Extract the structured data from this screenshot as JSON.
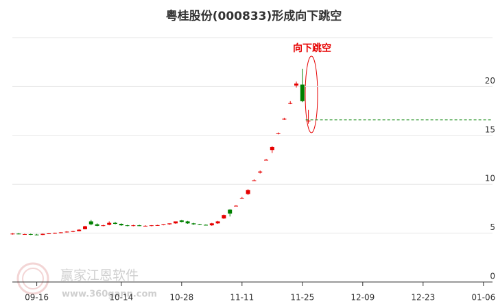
{
  "chart_data": {
    "type": "candlestick",
    "title": "粤桂股份(000833)形成向下跳空",
    "annotation": "向下跳空",
    "watermark": {
      "name": "赢家江恩软件",
      "url": "www.360gann.com"
    },
    "categories": [
      null,
      null,
      null,
      null,
      "09-16",
      null,
      null,
      null,
      null,
      null,
      null,
      null,
      null,
      null,
      null,
      null,
      null,
      null,
      "10-14",
      null,
      null,
      null,
      null,
      null,
      null,
      null,
      null,
      null,
      "10-28",
      null,
      null,
      null,
      null,
      null,
      null,
      null,
      null,
      null,
      "11-11",
      null,
      null,
      null,
      null,
      null,
      null,
      null,
      null,
      null,
      "11-25",
      null,
      null,
      null,
      null,
      null,
      null,
      null,
      null,
      null,
      "12-09",
      null,
      null,
      null,
      null,
      null,
      null,
      null,
      null,
      null,
      "12-23",
      null,
      null,
      null,
      null,
      null,
      null,
      null,
      null,
      null,
      "01-06",
      null
    ],
    "open": [
      4.9,
      4.95,
      4.9,
      4.9,
      4.85,
      4.82,
      4.93,
      4.97,
      5.0,
      5.08,
      5.15,
      5.2,
      5.4,
      6.2,
      5.9,
      5.75,
      5.85,
      6.05,
      5.95,
      5.8,
      5.75,
      5.8,
      5.72,
      5.75,
      5.8,
      5.82,
      5.9,
      6.0,
      6.3,
      6.2,
      6.0,
      5.9,
      5.85,
      5.8,
      6.0,
      6.5,
      7.4,
      7.8,
      8.6,
      9.0,
      10.4,
      11.2,
      12.5,
      13.5,
      15.2,
      16.7,
      18.3,
      20.1,
      20.2,
      16.5,
      null,
      null,
      null,
      null,
      null,
      null,
      null,
      null,
      null,
      null,
      null,
      null,
      null,
      null,
      null,
      null,
      null,
      null,
      null,
      null,
      null,
      null,
      null,
      null,
      null,
      null,
      null,
      null,
      null,
      null
    ],
    "high": [
      5.0,
      5.0,
      4.95,
      4.95,
      4.92,
      4.95,
      5.0,
      5.05,
      5.1,
      5.2,
      5.25,
      5.4,
      5.75,
      6.35,
      6.0,
      5.85,
      6.2,
      6.15,
      6.0,
      5.85,
      5.85,
      5.85,
      5.8,
      5.82,
      5.85,
      5.9,
      6.0,
      6.2,
      6.35,
      6.25,
      6.05,
      5.95,
      5.9,
      6.05,
      6.25,
      6.9,
      7.45,
      7.85,
      8.7,
      9.5,
      10.5,
      11.4,
      12.6,
      13.9,
      15.3,
      16.8,
      18.5,
      20.5,
      21.8,
      17.6,
      null,
      null,
      null,
      null,
      null,
      null,
      null,
      null,
      null,
      null,
      null,
      null,
      null,
      null,
      null,
      null,
      null,
      null,
      null,
      null,
      null,
      null,
      null,
      null,
      null,
      null,
      null,
      null,
      null,
      null
    ],
    "low": [
      4.85,
      4.88,
      4.85,
      4.8,
      4.78,
      4.8,
      4.9,
      4.93,
      4.98,
      5.05,
      5.1,
      5.18,
      5.38,
      5.8,
      5.7,
      5.7,
      5.8,
      5.9,
      5.75,
      5.7,
      5.7,
      5.72,
      5.68,
      5.7,
      5.75,
      5.8,
      5.85,
      5.95,
      6.1,
      5.95,
      5.85,
      5.82,
      5.78,
      5.75,
      5.95,
      6.45,
      6.7,
      7.75,
      8.5,
      8.9,
      10.35,
      11.1,
      12.45,
      13.2,
      15.1,
      16.6,
      18.2,
      19.9,
      18.4,
      16.2,
      null,
      null,
      null,
      null,
      null,
      null,
      null,
      null,
      null,
      null,
      null,
      null,
      null,
      null,
      null,
      null,
      null,
      null,
      null,
      null,
      null,
      null,
      null,
      null,
      null,
      null,
      null,
      null,
      null,
      null
    ],
    "close": [
      4.95,
      4.9,
      4.9,
      4.85,
      4.82,
      4.93,
      4.97,
      5.02,
      5.08,
      5.15,
      5.2,
      5.35,
      5.7,
      5.9,
      5.75,
      5.8,
      6.05,
      5.95,
      5.8,
      5.75,
      5.8,
      5.72,
      5.75,
      5.8,
      5.82,
      5.9,
      6.0,
      6.2,
      6.15,
      6.0,
      5.9,
      5.85,
      5.8,
      6.0,
      6.2,
      6.85,
      7.0,
      7.8,
      8.6,
      9.4,
      10.4,
      11.3,
      12.5,
      13.8,
      15.2,
      16.7,
      18.3,
      20.3,
      18.5,
      16.5,
      null,
      null,
      null,
      null,
      null,
      null,
      null,
      null,
      null,
      null,
      null,
      null,
      null,
      null,
      null,
      null,
      null,
      null,
      null,
      null,
      null,
      null,
      null,
      null,
      null,
      null,
      null,
      null,
      null,
      null
    ],
    "up_color": "#e60000",
    "down_color": "#008000",
    "reference_line": 16.6,
    "ylim": [
      0,
      25
    ],
    "yticks": [
      0,
      5,
      10,
      15,
      20
    ],
    "grid": true
  }
}
